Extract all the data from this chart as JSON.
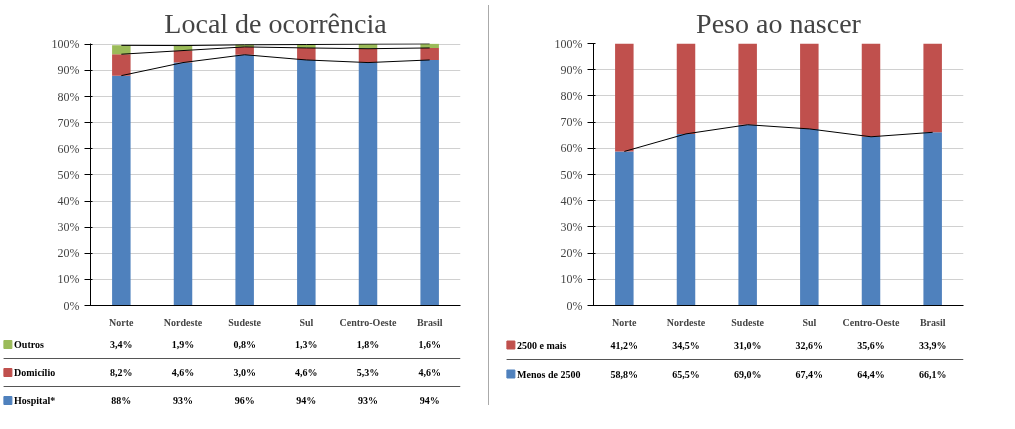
{
  "chart_data": [
    {
      "type": "bar",
      "stacked": true,
      "title": "Local de ocorrência",
      "categories": [
        "Norte",
        "Nordeste",
        "Sudeste",
        "Sul",
        "Centro-Oeste",
        "Brasil"
      ],
      "ylim": [
        0,
        100.3
      ],
      "yticks": [
        {
          "value": 0,
          "label": "0%"
        },
        {
          "value": 10,
          "label": "10%"
        },
        {
          "value": 20,
          "label": "20%"
        },
        {
          "value": 30,
          "label": "30%"
        },
        {
          "value": 40,
          "label": "40%"
        },
        {
          "value": 50,
          "label": "50%"
        },
        {
          "value": 60,
          "label": "60%"
        },
        {
          "value": 70,
          "label": "70%"
        },
        {
          "value": 80,
          "label": "80%"
        },
        {
          "value": 90,
          "label": "90%"
        },
        {
          "value": 100,
          "label": "100%"
        }
      ],
      "grid": "y",
      "legend": "bottom",
      "series": [
        {
          "name": "Hospital*",
          "color": "#4f81bd",
          "values": [
            88,
            93,
            96,
            94,
            93,
            94
          ],
          "value_labels": [
            "88%",
            "93%",
            "96%",
            "94%",
            "93%",
            "94%"
          ]
        },
        {
          "name": "Domicílio",
          "color": "#c0504d",
          "values": [
            8.2,
            4.6,
            3.0,
            4.6,
            5.3,
            4.6
          ],
          "value_labels": [
            "8,2%",
            "4,6%",
            "3,0%",
            "4,6%",
            "5,3%",
            "4,6%"
          ]
        },
        {
          "name": "Outros",
          "color": "#9bbb59",
          "values": [
            3.4,
            1.9,
            0.8,
            1.3,
            1.8,
            1.6
          ],
          "value_labels": [
            "3,4%",
            "1,9%",
            "0,8%",
            "1,3%",
            "1,8%",
            "1,6%"
          ]
        },
        {
          "type": "line",
          "color": "#000000",
          "values": [
            88,
            93,
            96,
            94,
            93,
            94
          ]
        },
        {
          "type": "line",
          "color": "#000000",
          "values": [
            96.2,
            97.6,
            99.0,
            98.6,
            98.3,
            98.6
          ]
        },
        {
          "type": "line",
          "color": "#000000",
          "values": [
            99.6,
            99.5,
            99.8,
            99.9,
            100.1,
            100.2
          ]
        }
      ]
    },
    {
      "type": "bar",
      "stacked": true,
      "title": "Peso ao nascer",
      "categories": [
        "Norte",
        "Nordeste",
        "Sudeste",
        "Sul",
        "Centro-Oeste",
        "Brasil"
      ],
      "ylim": [
        0,
        100
      ],
      "yticks": [
        {
          "value": 0,
          "label": "0%"
        },
        {
          "value": 10,
          "label": "10%"
        },
        {
          "value": 20,
          "label": "20%"
        },
        {
          "value": 30,
          "label": "30%"
        },
        {
          "value": 40,
          "label": "40%"
        },
        {
          "value": 50,
          "label": "50%"
        },
        {
          "value": 60,
          "label": "60%"
        },
        {
          "value": 70,
          "label": "70%"
        },
        {
          "value": 80,
          "label": "80%"
        },
        {
          "value": 90,
          "label": "90%"
        },
        {
          "value": 100,
          "label": "100%"
        }
      ],
      "grid": "y",
      "legend": "bottom",
      "series": [
        {
          "name": "Menos de 2500",
          "color": "#4f81bd",
          "values": [
            58.8,
            65.5,
            69.0,
            67.4,
            64.4,
            66.1
          ],
          "value_labels": [
            "58,8%",
            "65,5%",
            "69,0%",
            "67,4%",
            "64,4%",
            "66,1%"
          ]
        },
        {
          "name": "2500 e mais",
          "color": "#c0504d",
          "values": [
            41.2,
            34.5,
            31.0,
            32.6,
            35.6,
            33.9
          ],
          "value_labels": [
            "41,2%",
            "34,5%",
            "31,0%",
            "32,6%",
            "35,6%",
            "33,9%"
          ]
        },
        {
          "type": "line",
          "color": "#000000",
          "values": [
            58.8,
            65.5,
            69.0,
            67.4,
            64.4,
            66.1
          ]
        }
      ]
    }
  ]
}
